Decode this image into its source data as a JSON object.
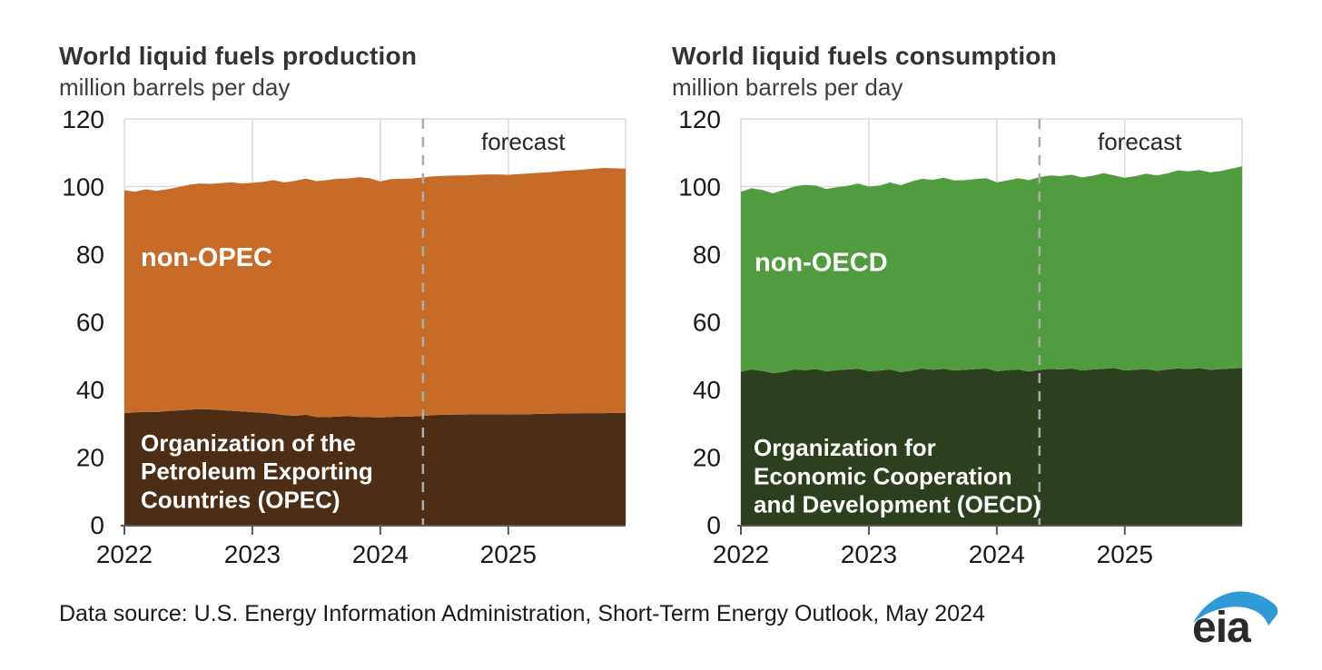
{
  "page": {
    "background": "#ffffff"
  },
  "style": {
    "grid": "#d9d9d9",
    "axis": "#595959",
    "tick_label_color": "#1a1a1a",
    "forecast_line": "#ababab",
    "forecast_text_color": "#262626",
    "layer_label_color": "#ffffff",
    "logo_blue": "#2e9bd6",
    "logo_text_color": "#2a2a2a"
  },
  "footer": {
    "source_text": "Data source: U.S. Energy Information Administration, Short-Term Energy Outlook, May 2024",
    "logo": "eia"
  },
  "chart_data": [
    {
      "type": "area",
      "stacked": true,
      "title": "World liquid fuels production",
      "subtitle": "million barrels per day",
      "x_start": "2022-01",
      "x_end": "2025-12",
      "x_tick_labels": [
        "2022",
        "2023",
        "2024",
        "2025"
      ],
      "ylim": [
        0,
        120
      ],
      "y_ticks": [
        0,
        20,
        40,
        60,
        80,
        100,
        120
      ],
      "grid": true,
      "legend_position": "in-plot",
      "forecast_label": "forecast",
      "forecast_start": "2024-05",
      "series": [
        {
          "id": "opec",
          "name": "Organization of the Petroleum Exporting Countries (OPEC)",
          "label_lines": [
            "Organization of the",
            "Petroleum Exporting",
            "Countries (OPEC)"
          ],
          "color": "#4c2e16",
          "values": [
            33.0,
            33.2,
            33.4,
            33.3,
            33.6,
            33.8,
            34.0,
            34.2,
            34.1,
            33.9,
            33.7,
            33.5,
            33.3,
            33.1,
            32.8,
            32.4,
            32.2,
            32.5,
            31.9,
            31.8,
            32.0,
            32.1,
            31.9,
            31.8,
            31.7,
            31.9,
            32.0,
            32.0,
            32.2,
            32.4,
            32.5,
            32.6,
            32.6,
            32.7,
            32.7,
            32.7,
            32.6,
            32.7,
            32.7,
            32.8,
            32.8,
            32.9,
            32.9,
            33.0,
            33.0,
            33.0,
            33.1,
            33.1
          ]
        },
        {
          "id": "non-opec",
          "name": "non-OPEC",
          "label_lines": [
            "non-OPEC"
          ],
          "color": "#c76b28",
          "values": [
            65.9,
            65.3,
            65.8,
            65.4,
            65.6,
            66.0,
            66.5,
            66.7,
            66.7,
            67.1,
            67.6,
            67.4,
            67.8,
            68.3,
            69.1,
            68.8,
            69.5,
            69.9,
            69.7,
            70.1,
            70.3,
            70.3,
            70.9,
            70.7,
            69.8,
            70.3,
            70.3,
            70.4,
            70.5,
            70.6,
            70.7,
            70.7,
            70.7,
            70.8,
            70.9,
            70.9,
            70.9,
            71.0,
            71.2,
            71.3,
            71.5,
            71.7,
            71.9,
            72.0,
            72.3,
            72.5,
            72.3,
            72.2
          ]
        }
      ]
    },
    {
      "type": "area",
      "stacked": true,
      "title": "World liquid fuels consumption",
      "subtitle": "million barrels per day",
      "x_start": "2022-01",
      "x_end": "2025-12",
      "x_tick_labels": [
        "2022",
        "2023",
        "2024",
        "2025"
      ],
      "ylim": [
        0,
        120
      ],
      "y_ticks": [
        0,
        20,
        40,
        60,
        80,
        100,
        120
      ],
      "grid": true,
      "legend_position": "in-plot",
      "forecast_label": "forecast",
      "forecast_start": "2024-05",
      "series": [
        {
          "id": "oecd",
          "name": "Organization for Economic Cooperation and Development (OECD)",
          "label_lines": [
            "Organization for",
            "Economic Cooperation",
            "and Development (OECD)"
          ],
          "color": "#2c401f",
          "values": [
            45.3,
            45.9,
            45.5,
            44.8,
            45.2,
            45.9,
            45.7,
            46.0,
            45.4,
            45.7,
            45.9,
            46.1,
            45.4,
            45.6,
            45.9,
            45.1,
            45.6,
            46.2,
            45.8,
            46.1,
            45.6,
            45.8,
            46.0,
            46.2,
            45.4,
            45.7,
            45.9,
            45.3,
            45.8,
            46.1,
            45.9,
            46.2,
            45.6,
            45.9,
            46.1,
            46.3,
            45.6,
            45.8,
            46.0,
            45.5,
            45.9,
            46.2,
            46.0,
            46.3,
            45.8,
            46.0,
            46.2,
            46.4
          ]
        },
        {
          "id": "non-oecd",
          "name": "non-OECD",
          "label_lines": [
            "non-OECD"
          ],
          "color": "#529c40",
          "values": [
            53.2,
            53.6,
            53.5,
            53.2,
            53.8,
            54.1,
            54.8,
            54.3,
            53.9,
            54.1,
            54.3,
            54.8,
            54.6,
            54.7,
            55.3,
            55.3,
            55.9,
            56.1,
            56.2,
            56.5,
            56.2,
            56.1,
            56.2,
            56.3,
            55.9,
            56.1,
            56.6,
            56.6,
            57.0,
            57.2,
            57.2,
            57.3,
            57.1,
            57.3,
            57.9,
            57.0,
            57.0,
            57.3,
            57.8,
            57.8,
            58.0,
            58.6,
            58.5,
            58.6,
            58.4,
            58.6,
            59.1,
            59.6
          ]
        }
      ]
    }
  ]
}
